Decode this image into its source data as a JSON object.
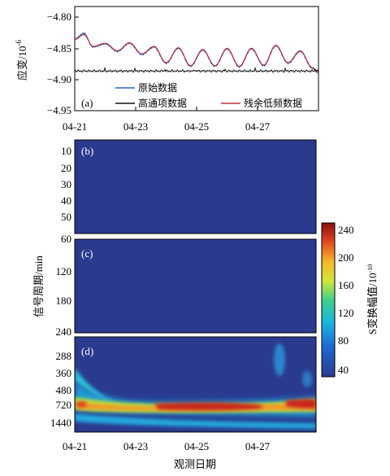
{
  "chart_data": [
    {
      "type": "line",
      "panel_label": "(a)",
      "ylabel": "应变/10",
      "ylabel_exp": "-6",
      "ylim": [
        -4.95,
        -4.8
      ],
      "yticks": [
        "−4.80",
        "−4.85",
        "−4.90",
        "−4.95"
      ],
      "x_ticks": [
        "04-21",
        "04-23",
        "04-25",
        "04-27"
      ],
      "xlim": [
        "04-21",
        "04-29"
      ],
      "legend": [
        "原始数据",
        "高通项数据",
        "残余低频数据"
      ],
      "series": [
        {
          "name": "原始数据",
          "color": "#2e64c0",
          "x": [
            0,
            0.3,
            0.6,
            1.0,
            1.4,
            1.8,
            2.2,
            2.6,
            3.0,
            3.4,
            3.8,
            4.2,
            4.6,
            5.0,
            5.4,
            5.8,
            6.2,
            6.6,
            7.0,
            7.4,
            7.8,
            8.0
          ],
          "y": [
            -4.835,
            -4.826,
            -4.848,
            -4.843,
            -4.855,
            -4.842,
            -4.86,
            -4.848,
            -4.874,
            -4.85,
            -4.879,
            -4.853,
            -4.879,
            -4.851,
            -4.88,
            -4.851,
            -4.878,
            -4.846,
            -4.874,
            -4.855,
            -4.882,
            -4.889
          ]
        },
        {
          "name": "高通项数据",
          "color": "#111111",
          "x": [
            0,
            1,
            2,
            3,
            4,
            5,
            6,
            7,
            8
          ],
          "y": [
            -4.886,
            -4.887,
            -4.886,
            -4.887,
            -4.886,
            -4.886,
            -4.887,
            -4.886,
            -4.886
          ]
        },
        {
          "name": "残余低频数据",
          "color": "#c8323a",
          "x": [
            0,
            0.3,
            0.6,
            1.0,
            1.4,
            1.8,
            2.2,
            2.6,
            3.0,
            3.4,
            3.8,
            4.2,
            4.6,
            5.0,
            5.4,
            5.8,
            6.2,
            6.6,
            7.0,
            7.4,
            7.8,
            8.0
          ],
          "y": [
            -4.836,
            -4.828,
            -4.847,
            -4.842,
            -4.854,
            -4.841,
            -4.859,
            -4.847,
            -4.873,
            -4.849,
            -4.878,
            -4.852,
            -4.878,
            -4.85,
            -4.879,
            -4.85,
            -4.877,
            -4.845,
            -4.873,
            -4.854,
            -4.881,
            -4.888
          ]
        }
      ]
    },
    {
      "type": "heatmap",
      "panel_label": "(b)",
      "yticks": [
        "10",
        "20",
        "30",
        "40",
        "50"
      ],
      "ylim": [
        3,
        58
      ],
      "note_values": "uniform background ≈ 40"
    },
    {
      "type": "heatmap",
      "panel_label": "(c)",
      "yticks": [
        "60",
        "120",
        "180",
        "240"
      ],
      "ylim": [
        60,
        240
      ],
      "note_values": "uniform background ≈ 40"
    },
    {
      "type": "heatmap",
      "panel_label": "(d)",
      "yticks": [
        "288",
        "360",
        "480",
        "720",
        "1440"
      ],
      "x_ticks": [
        "04-21",
        "04-23",
        "04-25",
        "04-27"
      ],
      "xlabel": "观测日期",
      "band_peak_period": 720,
      "band_max_value": 230
    }
  ],
  "shared": {
    "ylabel_bc": "信号周期/min",
    "colorbar": {
      "label": "S变换幅值/10",
      "label_exp": "-10",
      "ticks": [
        "240",
        "200",
        "160",
        "120",
        "80",
        "40"
      ],
      "range": [
        30,
        245
      ]
    }
  }
}
